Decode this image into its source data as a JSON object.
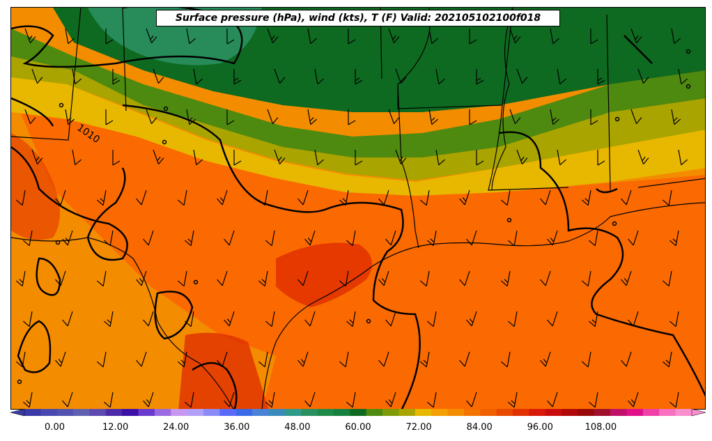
{
  "title": "Surface pressure (hPa), wind (kts), T (F) Valid: 202105102100f018",
  "isobar_label": "1010",
  "colorbar": {
    "min": -6,
    "max": 126,
    "step": 3,
    "ticks": [
      "0.00",
      "12.00",
      "24.00",
      "36.00",
      "48.00",
      "60.00",
      "72.00",
      "84.00",
      "96.00",
      "108.00"
    ],
    "colors": [
      "#3a3aa8",
      "#4848b0",
      "#5252b0",
      "#6060b0",
      "#5c4ab0",
      "#4a2aa8",
      "#3c10a8",
      "#6a3acc",
      "#9a6ae0",
      "#c898f0",
      "#b0a0f8",
      "#8a8af8",
      "#5a6af8",
      "#3a6ae8",
      "#4a82d8",
      "#3a8abc",
      "#2e9a8a",
      "#2a9060",
      "#1e8a48",
      "#158040",
      "#0e6a20",
      "#4e8a10",
      "#7e9a08",
      "#aaa400",
      "#e8b800",
      "#f4a000",
      "#f48c00",
      "#f47400",
      "#f06000",
      "#e84800",
      "#e03000",
      "#d81808",
      "#c80c0c",
      "#b00808",
      "#980808",
      "#a0102c",
      "#c0106a",
      "#e0108a",
      "#ef40a8",
      "#f870c0",
      "#f890d0"
    ]
  },
  "colors": {
    "ocean": "#fa6a00",
    "warm_land": "#f48c00",
    "hot": "#e03000",
    "yellow": "#e8b800",
    "olive": "#aaa400",
    "green": "#4e8a10",
    "dark_green": "#0e6a20",
    "teal": "#2a9060"
  }
}
